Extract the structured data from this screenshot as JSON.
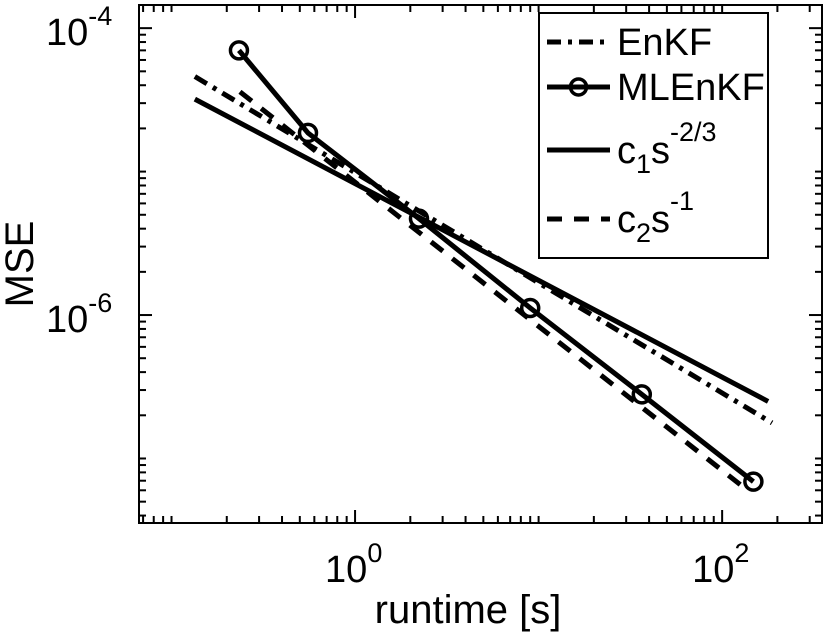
{
  "figure": {
    "background": "#ffffff",
    "foreground": "#000000"
  },
  "chart_data": {
    "type": "line",
    "title": "",
    "xlabel": "runtime [s]",
    "ylabel": "MSE",
    "x_scale": "log",
    "y_scale": "log",
    "xlim": [
      0.0665,
      350
    ],
    "ylim": [
      3.55e-08,
      0.000145
    ],
    "grid": false,
    "legend_position": "northeast",
    "x_major_ticks": [
      {
        "value": 1,
        "base": "10",
        "exp": "0"
      },
      {
        "value": 100,
        "base": "10",
        "exp": "2"
      }
    ],
    "y_major_ticks": [
      {
        "value": 0.0001,
        "base": "10",
        "exp": "-4"
      },
      {
        "value": 1e-06,
        "base": "10",
        "exp": "-6"
      }
    ],
    "series": [
      {
        "name": "EnKF",
        "style": "dashdot",
        "marker": "none",
        "points": [
          [
            0.134,
            4.6e-05
          ],
          [
            187,
            1.77e-07
          ]
        ]
      },
      {
        "name": "MLEnKF",
        "style": "solid",
        "marker": "circle",
        "points": [
          [
            0.233,
            7e-05
          ],
          [
            0.554,
            1.86e-05
          ],
          [
            2.23,
            4.7e-06
          ],
          [
            9.0,
            1.12e-06
          ],
          [
            36.5,
            2.8e-07
          ],
          [
            148,
            6.9e-08
          ]
        ]
      },
      {
        "name": "c1*s^(-2/3)",
        "style": "solid",
        "marker": "none",
        "points": [
          [
            0.134,
            3.2e-05
          ],
          [
            178,
            2.5e-07
          ]
        ]
      },
      {
        "name": "c2*s^(-1)",
        "style": "dashed",
        "marker": "none",
        "points": [
          [
            0.236,
            3.6e-05
          ],
          [
            133,
            6.2e-08
          ]
        ]
      }
    ],
    "legend_entries": [
      {
        "series": "EnKF",
        "style": "dashdot",
        "marker": "none",
        "parts": [
          {
            "t": "EnKF"
          }
        ]
      },
      {
        "series": "MLEnKF",
        "style": "solid",
        "marker": "circle",
        "parts": [
          {
            "t": "MLEnKF"
          }
        ]
      },
      {
        "series": "c1s",
        "style": "solid",
        "marker": "none",
        "parts": [
          {
            "t": "c"
          },
          {
            "t": "1",
            "pos": "sub"
          },
          {
            "t": "s"
          },
          {
            "t": "-2/3",
            "pos": "sup"
          }
        ]
      },
      {
        "series": "c2s",
        "style": "dashed",
        "marker": "none",
        "parts": [
          {
            "t": "c"
          },
          {
            "t": "2",
            "pos": "sub"
          },
          {
            "t": "s"
          },
          {
            "t": "-1",
            "pos": "sup"
          }
        ]
      }
    ]
  }
}
